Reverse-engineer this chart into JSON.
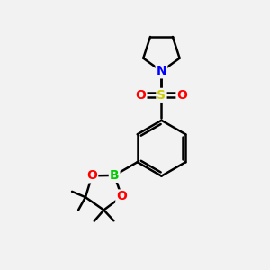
{
  "bg_color": "#f2f2f2",
  "line_color": "#000000",
  "bond_width": 1.8,
  "atom_colors": {
    "N": "#0000ff",
    "S": "#cccc00",
    "O": "#ff0000",
    "B": "#00cc00",
    "C": "#000000"
  },
  "font_size_atom": 10,
  "font_size_methyl": 8,
  "figsize": [
    3.0,
    3.0
  ],
  "dpi": 100
}
